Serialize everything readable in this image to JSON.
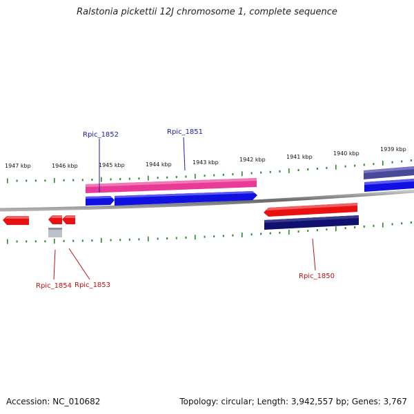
{
  "title": "Ralstonia pickettii 12J chromosome 1, complete sequence",
  "footer": {
    "accession": "Accession: NC_010682",
    "summary": "Topology: circular; Length: 3,942,557 bp; Genes: 3,767"
  },
  "kbp_labels": [
    "1947 kbp",
    "1946 kbp",
    "1945 kbp",
    "1944 kbp",
    "1943 kbp",
    "1942 kbp",
    "1941 kbp",
    "1940 kbp",
    "1939 kbp"
  ],
  "gene_labels": {
    "rpic_1852": "Rpic_1852",
    "rpic_1851": "Rpic_1851",
    "rpic_1854": "Rpic_1854",
    "rpic_1853": "Rpic_1853",
    "rpic_1850": "Rpic_1850"
  },
  "colors": {
    "pink": "#e83a96",
    "blue": "#1010e0",
    "red": "#e81010",
    "navy": "#10106e",
    "purple": "#4a4898",
    "grey": "#c0c0c8",
    "tick": "#2a8a2a",
    "backbone": "#808080"
  }
}
